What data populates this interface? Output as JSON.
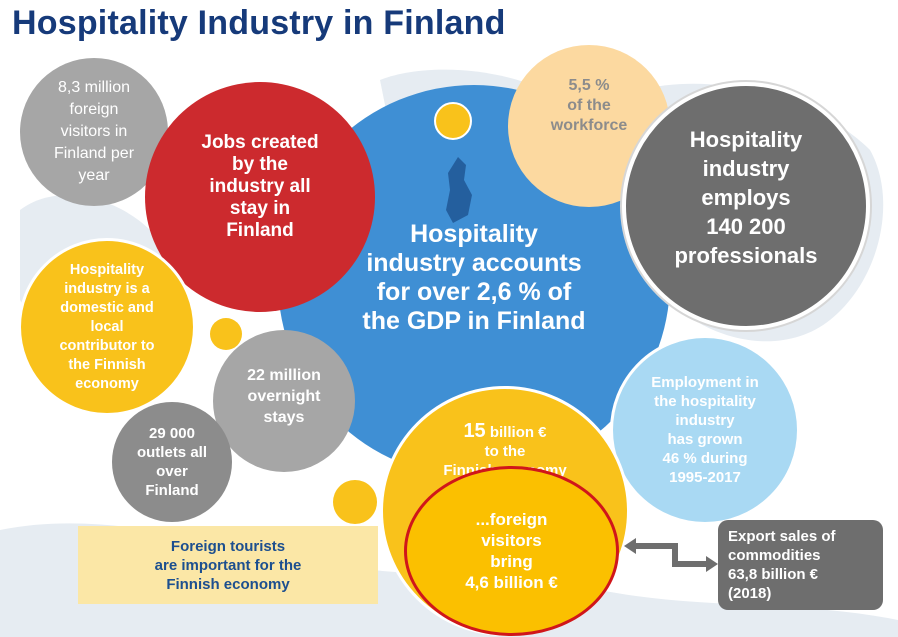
{
  "title": "Hospitality Industry in Finland",
  "colors": {
    "title": "#163a7a",
    "blue_center": "#3f8fd4",
    "red": "#cc2a2e",
    "gold": "#f9c21b",
    "gray": "#8c8c8c",
    "dark_gray": "#6e6e6e",
    "peach": "#fcd9a0",
    "light_blue": "#a9d9f3"
  },
  "circles": {
    "foreign_visitors": "8,3 million\nforeign\nvisitors in\nFinland per\nyear",
    "jobs": "Jobs created\nby the\nindustry all\nstay in\nFinland",
    "workforce": "5,5 %\nof the\nworkforce",
    "employs": "Hospitality\nindustry\nemploys\n140 200\nprofessionals",
    "gdp": "Hospitality\nindustry accounts\nfor over 2,6 % of\nthe GDP in Finland",
    "domestic": "Hospitality\nindustry is a\ndomestic and\nlocal\ncontributor to\nthe Finnish\neconomy",
    "overnight": "22 million\novernight\nstays",
    "employment_growth": "Employment  in\nthe hospitality\nindustry\nhas grown\n46 % during\n1995-2017",
    "outlets": "29 000\noutlets all\nover\nFinland",
    "economy_value": "15",
    "economy_rest": " billion €",
    "economy_tail": "to the\nFinnish economy",
    "foreign_bring": "...foreign\nvisitors\nbring\n4,6 billion €"
  },
  "note": "Foreign tourists\nare important for the\nFinnish economy",
  "export": "Export sales of\ncommodities\n63,8 billion €\n(2018)"
}
